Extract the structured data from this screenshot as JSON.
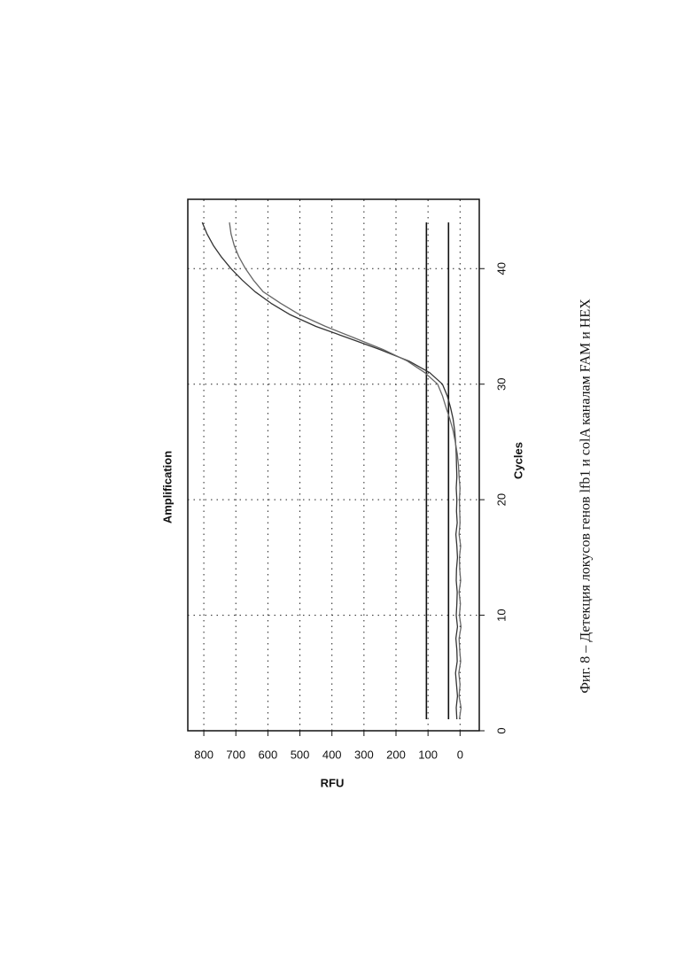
{
  "chart_data": {
    "type": "line",
    "title": "Amplification",
    "x_label": "Cycles",
    "y_label": "RFU",
    "x": [
      1,
      2,
      3,
      4,
      5,
      6,
      7,
      8,
      9,
      10,
      11,
      12,
      13,
      14,
      15,
      16,
      17,
      18,
      19,
      20,
      21,
      22,
      23,
      24,
      25,
      26,
      27,
      28,
      29,
      30,
      31,
      32,
      33,
      34,
      35,
      36,
      37,
      38,
      39,
      40,
      41,
      42,
      43,
      44
    ],
    "series": [
      {
        "color": "#333333",
        "values": [
          10,
          12,
          8,
          11,
          14,
          9,
          10,
          13,
          8,
          12,
          10,
          9,
          12,
          11,
          8,
          10,
          13,
          9,
          11,
          10,
          12,
          10,
          11,
          12,
          14,
          17,
          22,
          30,
          40,
          55,
          95,
          160,
          250,
          350,
          450,
          530,
          590,
          640,
          680,
          715,
          745,
          770,
          790,
          805
        ]
      },
      {
        "color": "#666666",
        "values": [
          2,
          -3,
          3,
          0,
          4,
          -2,
          1,
          3,
          -3,
          2,
          -1,
          3,
          -2,
          1,
          2,
          -2,
          3,
          0,
          1,
          2,
          0,
          3,
          5,
          9,
          15,
          22,
          32,
          44,
          55,
          70,
          110,
          165,
          240,
          330,
          420,
          500,
          560,
          615,
          645,
          670,
          690,
          705,
          715,
          720
        ]
      }
    ],
    "thresholds": [
      105,
      36
    ],
    "xlim": [
      0,
      46
    ],
    "xticks": [
      0,
      10,
      20,
      30,
      40
    ],
    "ylim": [
      -60,
      850
    ],
    "yticks": [
      0,
      100,
      200,
      300,
      400,
      500,
      600,
      700,
      800
    ],
    "grid": true
  },
  "caption": "Фиг. 8 – Детекция локусов генов lfb1 и colA каналам FAM и HEX"
}
